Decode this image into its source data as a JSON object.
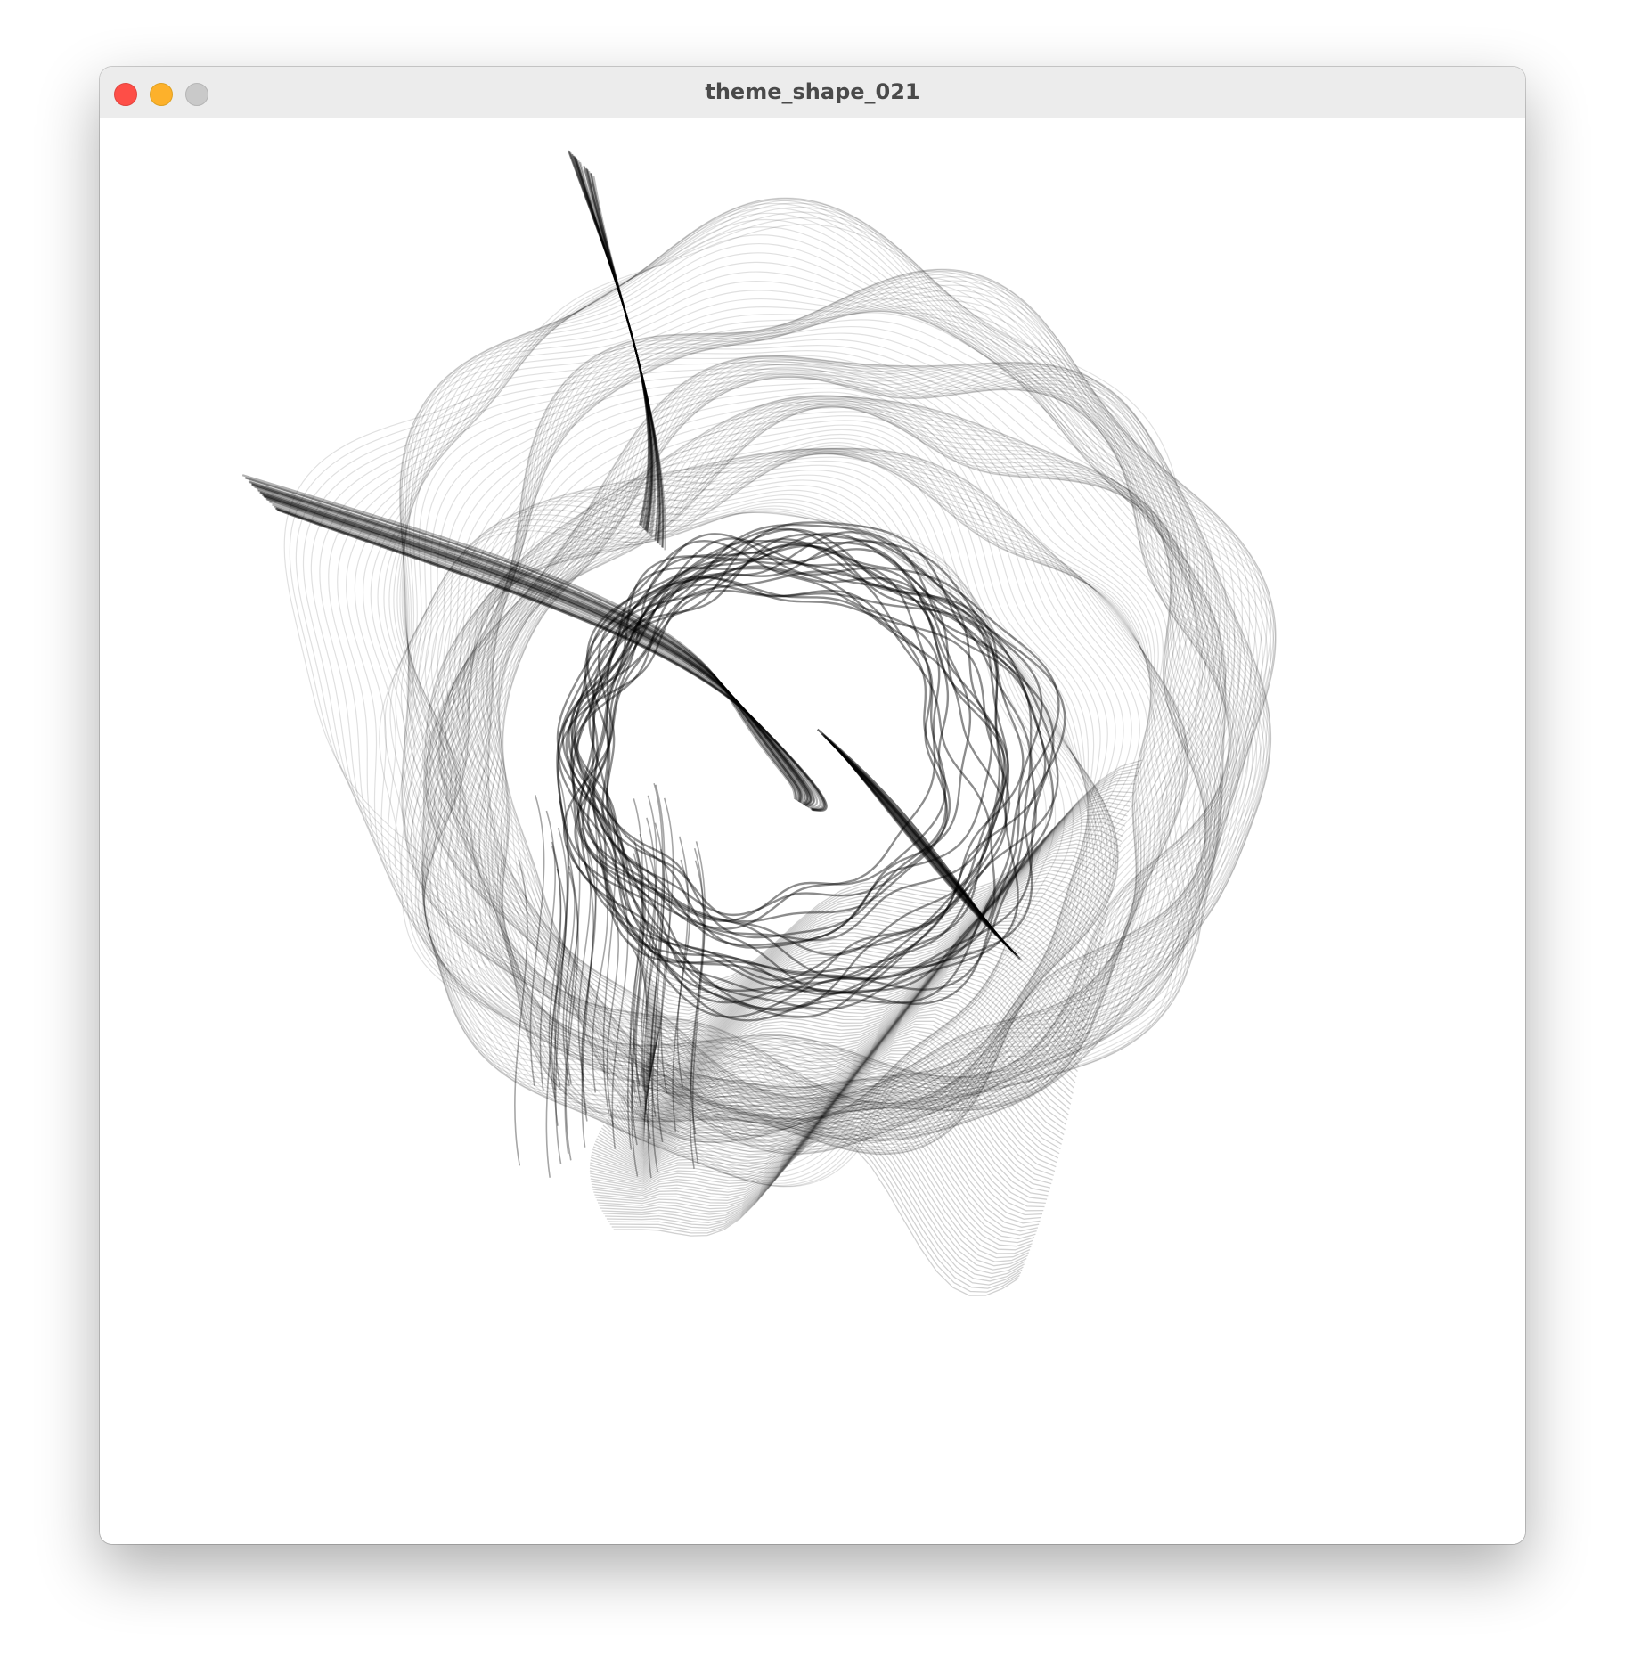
{
  "window": {
    "title": "theme_shape_021"
  },
  "controls": {
    "close": "close-icon",
    "minimize": "minimize-icon",
    "zoom": "zoom-icon"
  },
  "artwork": {
    "stroke_color": "#000000",
    "background_color": "#ffffff"
  }
}
